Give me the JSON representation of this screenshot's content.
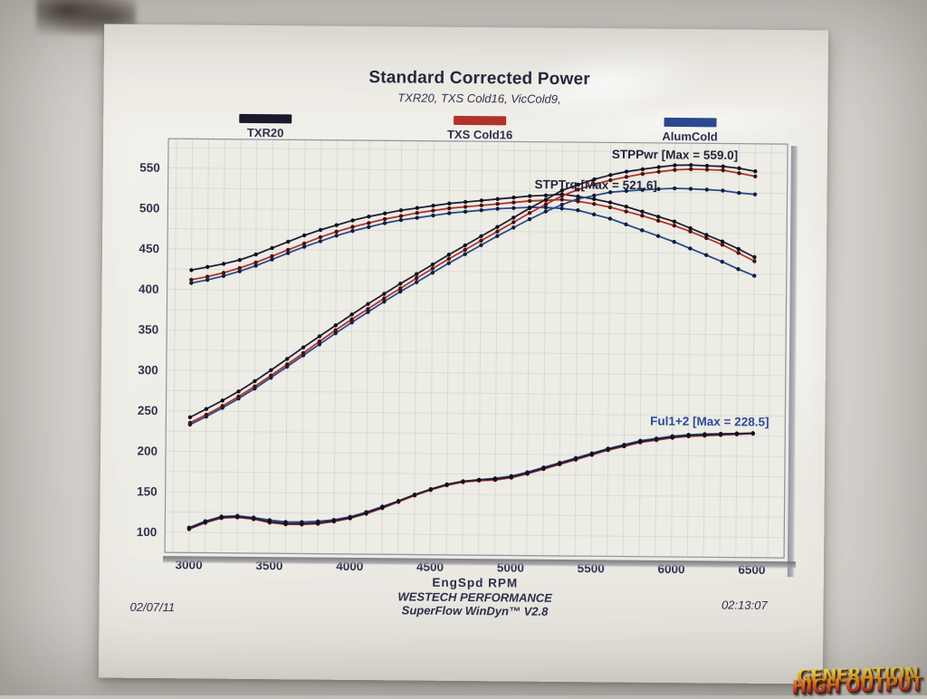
{
  "header": {
    "title": "Standard Corrected Power",
    "subtitle": "TXR20, TXS Cold16, VicCold9,"
  },
  "legend": [
    {
      "label": "TXR20",
      "color": "#1b1b2d"
    },
    {
      "label": "TXS Cold16",
      "color": "#b23329"
    },
    {
      "label": "AlumCold",
      "color": "#2a4a8f"
    }
  ],
  "footer": {
    "date": "02/07/11",
    "facility": "WESTECH PERFORMANCE",
    "software": "SuperFlow WinDyn™ V2.8",
    "time": "02:13:07"
  },
  "watermark": {
    "line1": "GENERATION",
    "line2": "HIGH OUTPUT"
  },
  "chart_data": {
    "type": "line",
    "title": "Standard Corrected Power",
    "xlabel": "EngSpd RPM",
    "ylabel": "",
    "xlim": [
      2850,
      6700
    ],
    "ylim": [
      75,
      586
    ],
    "xticks": [
      3000,
      3500,
      4000,
      4500,
      5000,
      5500,
      6000,
      6500
    ],
    "yticks": [
      100,
      150,
      200,
      250,
      300,
      350,
      400,
      450,
      500,
      550
    ],
    "grid": true,
    "legend_position": "top",
    "x": [
      3000,
      3100,
      3200,
      3300,
      3400,
      3500,
      3600,
      3700,
      3800,
      3900,
      4000,
      4100,
      4200,
      4300,
      4400,
      4500,
      4600,
      4700,
      4800,
      4900,
      5000,
      5100,
      5200,
      5300,
      5400,
      5500,
      5600,
      5700,
      5800,
      5900,
      6000,
      6100,
      6200,
      6300,
      6400,
      6500
    ],
    "series": [
      {
        "name": "STPTrq AlumCold",
        "run": "AlumCold",
        "measure": "torque",
        "color": "#2a4a8f",
        "marker": "#141d3c",
        "values": [
          408,
          412,
          417,
          423,
          430,
          438,
          446,
          454,
          461,
          468,
          474,
          479,
          484,
          488,
          491,
          494,
          497,
          499,
          501,
          503,
          504,
          505,
          505,
          504,
          502,
          497,
          492,
          485,
          478,
          471,
          464,
          456,
          448,
          440,
          431,
          423
        ]
      },
      {
        "name": "STPTrq TXS Cold16",
        "run": "TXS Cold16",
        "measure": "torque",
        "color": "#b23329",
        "marker": "#461210",
        "values": [
          412,
          416,
          421,
          427,
          434,
          442,
          450,
          458,
          466,
          473,
          479,
          484,
          489,
          493,
          497,
          500,
          503,
          505,
          507,
          509,
          511,
          513,
          514,
          515,
          513,
          510,
          506,
          501,
          496,
          490,
          484,
          477,
          469,
          461,
          451,
          441
        ]
      },
      {
        "name": "STPTrq TXR20",
        "run": "TXR20",
        "measure": "torque",
        "color": "#1f1f33",
        "marker": "#101020",
        "values": [
          424,
          428,
          432,
          437,
          444,
          452,
          460,
          468,
          475,
          481,
          487,
          492,
          496,
          500,
          503,
          506,
          509,
          511,
          513,
          515,
          517,
          519,
          520,
          521.6,
          519,
          516,
          512,
          507,
          501,
          495,
          489,
          481,
          473,
          465,
          456,
          446
        ]
      },
      {
        "name": "STPPwr AlumCold",
        "run": "AlumCold",
        "measure": "power",
        "color": "#2a4a8f",
        "marker": "#141d3c",
        "values": [
          233.1,
          243.2,
          254.1,
          265.8,
          278.4,
          291.9,
          305.7,
          319.9,
          333.6,
          347.5,
          361.0,
          374.0,
          387.1,
          399.6,
          411.3,
          423.3,
          435.3,
          446.6,
          457.9,
          469.3,
          479.9,
          490.4,
          500.1,
          508.7,
          516.1,
          520.4,
          524.6,
          526.4,
          527.9,
          529.1,
          530.1,
          529.6,
          528.9,
          527.8,
          525.2,
          523.5
        ]
      },
      {
        "name": "STPPwr TXS Cold16",
        "run": "TXS Cold16",
        "measure": "power",
        "color": "#b23329",
        "marker": "#461210",
        "values": [
          235.4,
          245.5,
          256.5,
          268.3,
          281.0,
          294.6,
          308.5,
          322.7,
          337.2,
          351.3,
          364.9,
          377.9,
          391.1,
          403.6,
          416.4,
          428.4,
          440.6,
          451.9,
          463.4,
          474.9,
          486.5,
          498.1,
          509.0,
          519.7,
          527.5,
          534.1,
          539.5,
          543.7,
          547.7,
          550.4,
          552.9,
          554.0,
          553.6,
          553.0,
          549.6,
          545.8
        ]
      },
      {
        "name": "STPPwr TXR20",
        "run": "TXR20",
        "measure": "power",
        "color": "#1f1f33",
        "marker": "#101020",
        "values": [
          242.2,
          252.6,
          263.2,
          274.6,
          287.4,
          301.2,
          315.3,
          329.7,
          343.6,
          357.2,
          370.9,
          384.1,
          396.7,
          409.4,
          421.4,
          433.5,
          445.8,
          457.3,
          468.9,
          480.5,
          492.2,
          504.0,
          514.9,
          526.4,
          533.6,
          540.4,
          545.9,
          550.2,
          553.3,
          556.1,
          558.6,
          559.0,
          558.3,
          557.7,
          555.6,
          552.0
        ]
      },
      {
        "name": "Ful1+2 AlumCold",
        "run": "AlumCold",
        "measure": "fuel",
        "color": "#2a4a8f",
        "marker": "#141d3c",
        "values": [
          106,
          114,
          120,
          121,
          119,
          116,
          114,
          114,
          115,
          117,
          121,
          127,
          134,
          141,
          149,
          156,
          162,
          166,
          168,
          170,
          173,
          178,
          184,
          190,
          196,
          202,
          208,
          213,
          218,
          221,
          224,
          226,
          227,
          227.5,
          228,
          228.5
        ]
      },
      {
        "name": "Ful1+2 TXS Cold16",
        "run": "TXS Cold16",
        "measure": "fuel",
        "color": "#b23329",
        "marker": "#461210",
        "values": [
          104,
          112,
          118,
          119,
          117,
          113,
          111,
          111,
          112,
          115,
          119,
          125,
          132,
          140,
          148,
          155,
          161,
          165,
          167,
          168,
          171,
          176,
          182,
          188,
          194,
          200,
          206,
          211,
          216,
          219,
          222,
          224,
          225,
          226,
          227,
          228
        ]
      },
      {
        "name": "Ful1+2 TXR20",
        "run": "TXR20",
        "measure": "fuel",
        "color": "#1f1f33",
        "marker": "#101020",
        "values": [
          105,
          113,
          119,
          120,
          118,
          114,
          112,
          112,
          113,
          116,
          120,
          126,
          133,
          141,
          149,
          156,
          162,
          166,
          168,
          169,
          172,
          177,
          183,
          189,
          195,
          201,
          207,
          212,
          217,
          220,
          223,
          225,
          226,
          227,
          228,
          228.5
        ]
      }
    ],
    "annotations": [
      {
        "text": "STPPwr [Max = 559.0]",
        "x": 6000,
        "y": 571,
        "color": "#23233d"
      },
      {
        "text": "STPTrq [Max = 521.6]",
        "x": 5510,
        "y": 533,
        "color": "#23233d"
      },
      {
        "text": "Ful1+2 [Max = 228.5]",
        "x": 6230,
        "y": 242,
        "color": "#2b4b9b"
      }
    ]
  }
}
